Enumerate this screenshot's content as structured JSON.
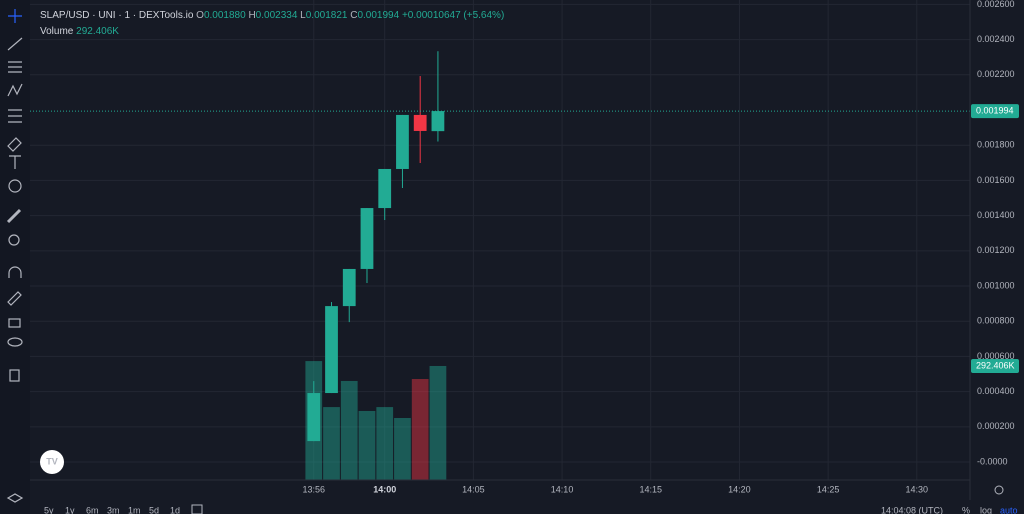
{
  "header": {
    "symbol": "SLAP/USD · UNI · 1 · DEXTools.io",
    "open_label": "O",
    "open": "0.001880",
    "high_label": "H",
    "high": "0.002334",
    "low_label": "L",
    "low": "0.001821",
    "close_label": "C",
    "close": "0.001994",
    "change": "+0.00010647 (+5.64%)",
    "volume_label": "Volume"
  },
  "chart_data": {
    "type": "candlestick",
    "x": [
      "13:56",
      "13:57",
      "13:58",
      "13:59",
      "14:00",
      "14:01",
      "14:02",
      "14:03"
    ],
    "open": [
      0.000119,
      0.000392,
      0.000886,
      0.001097,
      0.001443,
      0.001665,
      0.001972,
      0.00188
    ],
    "high": [
      0.00046,
      0.000909,
      0.001097,
      0.001443,
      0.001665,
      0.001972,
      0.002193,
      0.002334
    ],
    "low": [
      0.000119,
      0.000392,
      0.000795,
      0.001017,
      0.001375,
      0.001557,
      0.001699,
      0.001821
    ],
    "close": [
      0.000392,
      0.000886,
      0.001097,
      0.001443,
      0.001665,
      0.001972,
      0.001881,
      0.001994
    ],
    "up_color": "#22ab94",
    "down_color": "#f23645",
    "volume": {
      "name": "Volume",
      "values": [
        305000,
        187000,
        254000,
        177000,
        187000,
        159000,
        259000,
        292406
      ],
      "last_label": "292.406K",
      "vlim": [
        0,
        1231000
      ]
    },
    "last_price_label": "0.001994",
    "xlim": [
      "13:40",
      "14:33"
    ],
    "xticks": [
      "13:56",
      "14:00",
      "14:05",
      "14:10",
      "14:15",
      "14:20",
      "14:25",
      "14:30"
    ],
    "ylim": [
      -0.000102,
      0.002625
    ],
    "yticks": [
      {
        "value": 0.0026,
        "label": "0.002600"
      },
      {
        "value": 0.0024,
        "label": "0.002400"
      },
      {
        "value": 0.0022,
        "label": "0.002200"
      },
      {
        "value": 0.0018,
        "label": "0.001800"
      },
      {
        "value": 0.0016,
        "label": "0.001600"
      },
      {
        "value": 0.0014,
        "label": "0.001400"
      },
      {
        "value": 0.0012,
        "label": "0.001200"
      },
      {
        "value": 0.001,
        "label": "0.001000"
      },
      {
        "value": 0.0008,
        "label": "0.000800"
      },
      {
        "value": 0.0006,
        "label": "0.000600"
      },
      {
        "value": 0.0004,
        "label": "0.000400"
      },
      {
        "value": 0.0002,
        "label": "0.000200"
      },
      {
        "value": 0,
        "label": "-0.0000"
      }
    ],
    "grid": true
  },
  "footer": {
    "ranges": [
      "5y",
      "1y",
      "6m",
      "3m",
      "1m",
      "5d",
      "1d"
    ],
    "clock": "14:04:08 (UTC)",
    "percent": "%",
    "log": "log",
    "auto": "auto"
  }
}
